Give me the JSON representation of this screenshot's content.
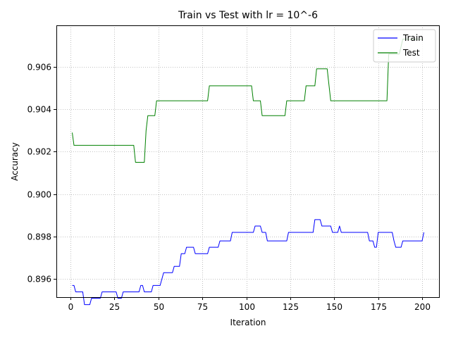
{
  "chart_data": {
    "type": "line",
    "title": "Train vs Test with lr = 10^-6",
    "xlabel": "Iteration",
    "ylabel": "Accuracy",
    "xlim": [
      -8,
      210
    ],
    "ylim": [
      0.89515,
      0.90795
    ],
    "xticks": [
      0,
      25,
      50,
      75,
      100,
      125,
      150,
      175,
      200
    ],
    "yticks": [
      0.896,
      0.898,
      0.9,
      0.902,
      0.904,
      0.906
    ],
    "ytick_labels": [
      "0.896",
      "0.898",
      "0.900",
      "0.902",
      "0.904",
      "0.906"
    ],
    "grid": true,
    "legend_position": "top-right",
    "series": [
      {
        "name": "Train",
        "color": "#0000ff",
        "points": [
          [
            1,
            0.8957
          ],
          [
            2,
            0.8957
          ],
          [
            3,
            0.8954
          ],
          [
            7,
            0.8954
          ],
          [
            8,
            0.8948
          ],
          [
            11,
            0.8948
          ],
          [
            12,
            0.8951
          ],
          [
            17,
            0.8951
          ],
          [
            18,
            0.8954
          ],
          [
            26,
            0.8954
          ],
          [
            27,
            0.8951
          ],
          [
            29,
            0.8951
          ],
          [
            30,
            0.8954
          ],
          [
            39,
            0.8954
          ],
          [
            40,
            0.8957
          ],
          [
            41,
            0.8957
          ],
          [
            42,
            0.8954
          ],
          [
            46,
            0.8954
          ],
          [
            47,
            0.8957
          ],
          [
            51,
            0.8957
          ],
          [
            53,
            0.8963
          ],
          [
            58,
            0.8963
          ],
          [
            59,
            0.8966
          ],
          [
            62,
            0.8966
          ],
          [
            63,
            0.8972
          ],
          [
            65,
            0.8972
          ],
          [
            66,
            0.8975
          ],
          [
            70,
            0.8975
          ],
          [
            71,
            0.8972
          ],
          [
            78,
            0.8972
          ],
          [
            79,
            0.8975
          ],
          [
            84,
            0.8975
          ],
          [
            85,
            0.8978
          ],
          [
            91,
            0.8978
          ],
          [
            92,
            0.8982
          ],
          [
            104,
            0.8982
          ],
          [
            105,
            0.8985
          ],
          [
            108,
            0.8985
          ],
          [
            109,
            0.8982
          ],
          [
            111,
            0.8982
          ],
          [
            112,
            0.8978
          ],
          [
            123,
            0.8978
          ],
          [
            124,
            0.8982
          ],
          [
            138,
            0.8982
          ],
          [
            139,
            0.8988
          ],
          [
            142,
            0.8988
          ],
          [
            143,
            0.8985
          ],
          [
            148,
            0.8985
          ],
          [
            149,
            0.8982
          ],
          [
            152,
            0.8982
          ],
          [
            153,
            0.8985
          ],
          [
            154,
            0.8982
          ],
          [
            169,
            0.8982
          ],
          [
            170,
            0.8978
          ],
          [
            172,
            0.8978
          ],
          [
            173,
            0.8975
          ],
          [
            174,
            0.8975
          ],
          [
            175,
            0.8982
          ],
          [
            183,
            0.8982
          ],
          [
            184,
            0.8978
          ],
          [
            185,
            0.8975
          ],
          [
            188,
            0.8975
          ],
          [
            189,
            0.8978
          ],
          [
            200,
            0.8978
          ],
          [
            201,
            0.8982
          ]
        ]
      },
      {
        "name": "Test",
        "color": "#008000",
        "points": [
          [
            1,
            0.9029
          ],
          [
            2,
            0.9023
          ],
          [
            36,
            0.9023
          ],
          [
            37,
            0.9015
          ],
          [
            42,
            0.9015
          ],
          [
            43,
            0.903
          ],
          [
            44,
            0.9037
          ],
          [
            48,
            0.9037
          ],
          [
            49,
            0.9044
          ],
          [
            78,
            0.9044
          ],
          [
            79,
            0.9051
          ],
          [
            103,
            0.9051
          ],
          [
            104,
            0.9044
          ],
          [
            108,
            0.9044
          ],
          [
            109,
            0.9037
          ],
          [
            122,
            0.9037
          ],
          [
            123,
            0.9044
          ],
          [
            133,
            0.9044
          ],
          [
            134,
            0.9051
          ],
          [
            139,
            0.9051
          ],
          [
            140,
            0.9059
          ],
          [
            146,
            0.9059
          ],
          [
            148,
            0.9044
          ],
          [
            180,
            0.9044
          ],
          [
            181,
            0.9066
          ],
          [
            187,
            0.9066
          ],
          [
            189,
            0.9073
          ],
          [
            200,
            0.9073
          ]
        ]
      }
    ]
  }
}
